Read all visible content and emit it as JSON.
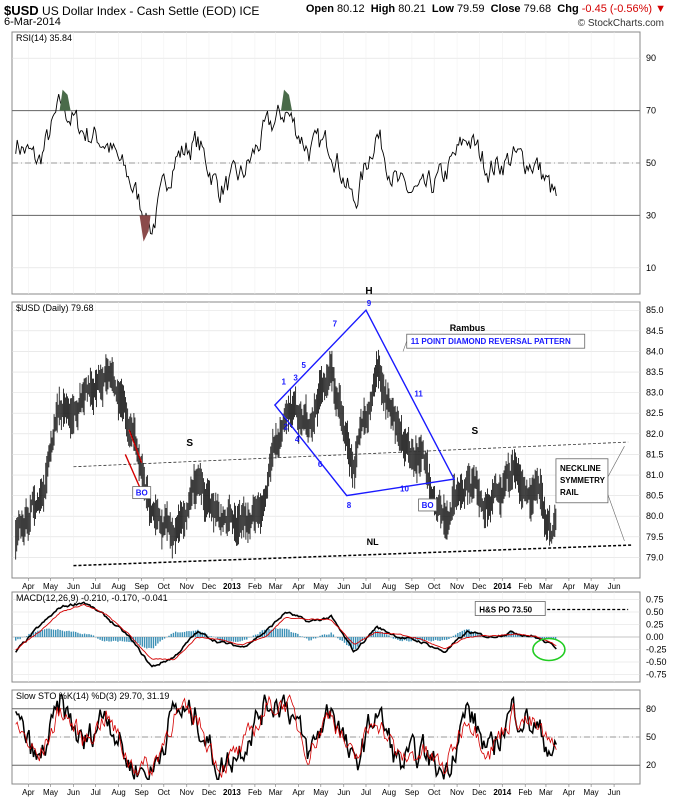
{
  "header": {
    "symbol": "$USD",
    "name": "US Dollar Index - Cash Settle (EOD) ICE",
    "date": "6-Mar-2014",
    "open_label": "Open",
    "open": "80.12",
    "high_label": "High",
    "high": "80.21",
    "low_label": "Low",
    "low": "79.59",
    "close_label": "Close",
    "close": "79.68",
    "chg_label": "Chg",
    "chg": "-0.45 (-0.56%)",
    "credit": "© StockCharts.com"
  },
  "colors": {
    "price": "#000000",
    "rsi_extreme": "#4a6b4a",
    "rsi_oversold": "#8a4a4a",
    "diamond": "#1a1aff",
    "macd_hist": "#3a8fb5",
    "signal": "#d40000",
    "circle": "#22cc22",
    "grid": "#dddddd"
  },
  "chart_data": [
    {
      "type": "line",
      "panel": "rsi",
      "title": "RSI(14) 35.84",
      "ylim": [
        0,
        100
      ],
      "yticks": [
        10,
        30,
        50,
        70,
        90
      ],
      "levels": [
        30,
        50,
        70
      ],
      "x": [
        "2012-03",
        "2012-04",
        "2012-05",
        "2012-06",
        "2012-07",
        "2012-08",
        "2012-09",
        "2012-10",
        "2012-11",
        "2012-12",
        "2013-01",
        "2013-02",
        "2013-03",
        "2013-04",
        "2013-05",
        "2013-06",
        "2013-07",
        "2013-08",
        "2013-09",
        "2013-10",
        "2013-11",
        "2013-12",
        "2014-01",
        "2014-02",
        "2014-03"
      ],
      "values": [
        58,
        50,
        72,
        62,
        58,
        44,
        25,
        52,
        58,
        40,
        45,
        62,
        70,
        55,
        58,
        34,
        62,
        40,
        38,
        45,
        60,
        48,
        52,
        50,
        36
      ]
    },
    {
      "type": "line",
      "panel": "price",
      "title": "$USD (Daily) 79.68",
      "ylim": [
        78.5,
        85.2
      ],
      "yticks": [
        79.0,
        79.5,
        80.0,
        80.5,
        81.0,
        81.5,
        82.0,
        82.5,
        83.0,
        83.5,
        84.0,
        84.5,
        85.0
      ],
      "x": [
        "2012-03",
        "2012-04",
        "2012-05",
        "2012-06",
        "2012-07",
        "2012-08",
        "2012-09",
        "2012-10",
        "2012-11",
        "2012-12",
        "2013-01",
        "2013-02",
        "2013-03",
        "2013-04",
        "2013-05",
        "2013-06",
        "2013-07",
        "2013-08",
        "2013-09",
        "2013-10",
        "2013-11",
        "2013-12",
        "2014-01",
        "2014-02",
        "2014-03"
      ],
      "values": [
        79.3,
        80.5,
        82.5,
        83.0,
        83.3,
        82.3,
        80.0,
        79.8,
        80.7,
        79.9,
        79.7,
        80.5,
        82.7,
        82.2,
        83.5,
        81.2,
        83.7,
        81.7,
        81.3,
        80.0,
        81.0,
        80.3,
        81.0,
        80.6,
        79.7
      ]
    },
    {
      "type": "line",
      "panel": "macd",
      "title": "MACD(12,26,9) -0.210, -0.170, -0.041",
      "ylim": [
        -0.9,
        0.9
      ],
      "yticks": [
        -0.75,
        -0.5,
        -0.25,
        0.0,
        0.25,
        0.5,
        0.75
      ],
      "x": [
        "2012-03",
        "2012-04",
        "2012-05",
        "2012-06",
        "2012-07",
        "2012-08",
        "2012-09",
        "2012-10",
        "2012-11",
        "2012-12",
        "2013-01",
        "2013-02",
        "2013-03",
        "2013-04",
        "2013-05",
        "2013-06",
        "2013-07",
        "2013-08",
        "2013-09",
        "2013-10",
        "2013-11",
        "2013-12",
        "2014-01",
        "2014-02",
        "2014-03"
      ],
      "series": [
        {
          "values": [
            -0.3,
            0.2,
            0.6,
            0.7,
            0.4,
            0.0,
            -0.6,
            -0.4,
            0.1,
            -0.1,
            -0.2,
            0.1,
            0.5,
            0.3,
            0.4,
            -0.3,
            0.2,
            0.0,
            -0.1,
            -0.3,
            0.1,
            0.0,
            0.1,
            0.0,
            -0.21
          ]
        },
        {
          "values": [
            -0.25,
            0.1,
            0.5,
            0.65,
            0.45,
            0.05,
            -0.45,
            -0.45,
            0.0,
            -0.05,
            -0.15,
            0.0,
            0.4,
            0.35,
            0.35,
            -0.15,
            0.1,
            0.05,
            -0.05,
            -0.25,
            0.0,
            0.02,
            0.05,
            0.02,
            -0.17
          ]
        }
      ]
    },
    {
      "type": "line",
      "panel": "sto",
      "title": "Slow STO %K(14) %D(3) 29.70, 31.19",
      "ylim": [
        0,
        100
      ],
      "yticks": [
        20,
        50,
        80
      ],
      "levels": [
        20,
        50,
        80
      ],
      "x": [
        "2012-03",
        "2012-04",
        "2012-05",
        "2012-06",
        "2012-07",
        "2012-08",
        "2012-09",
        "2012-10",
        "2012-11",
        "2012-12",
        "2013-01",
        "2013-02",
        "2013-03",
        "2013-04",
        "2013-05",
        "2013-06",
        "2013-07",
        "2013-08",
        "2013-09",
        "2013-10",
        "2013-11",
        "2013-12",
        "2014-01",
        "2014-02",
        "2014-03"
      ],
      "series": [
        {
          "values": [
            70,
            20,
            85,
            40,
            80,
            20,
            10,
            80,
            70,
            15,
            40,
            85,
            90,
            30,
            85,
            15,
            80,
            20,
            35,
            10,
            80,
            30,
            80,
            60,
            30
          ]
        },
        {
          "values": [
            65,
            25,
            80,
            45,
            75,
            25,
            15,
            75,
            70,
            20,
            35,
            80,
            88,
            35,
            80,
            20,
            75,
            25,
            35,
            15,
            75,
            35,
            75,
            60,
            31
          ]
        }
      ]
    }
  ],
  "x_axis": {
    "labels": [
      "Apr",
      "May",
      "Jun",
      "Jul",
      "Aug",
      "Sep",
      "Oct",
      "Nov",
      "Dec",
      "2013",
      "Feb",
      "Mar",
      "Apr",
      "May",
      "Jun",
      "Jul",
      "Aug",
      "Sep",
      "Oct",
      "Nov",
      "Dec",
      "2014",
      "Feb",
      "Mar",
      "Apr",
      "May",
      "Jun"
    ],
    "bold": [
      "2013",
      "2014"
    ]
  },
  "annotations": {
    "rambus": "Rambus",
    "diamond_label": "11 POINT DIAMOND   REVERSAL PATTERN",
    "points": [
      "1",
      "2",
      "3",
      "4",
      "5",
      "6",
      "7",
      "8",
      "9",
      "10",
      "11"
    ],
    "h": "H",
    "s_left": "S",
    "s_right": "S",
    "nl": "NL",
    "bo1": "BO",
    "bo2": "BO",
    "neckline_box": [
      "NECKLINE",
      "SYMMETRY",
      "RAIL"
    ],
    "hs_po": "H&S PO 73.50"
  }
}
